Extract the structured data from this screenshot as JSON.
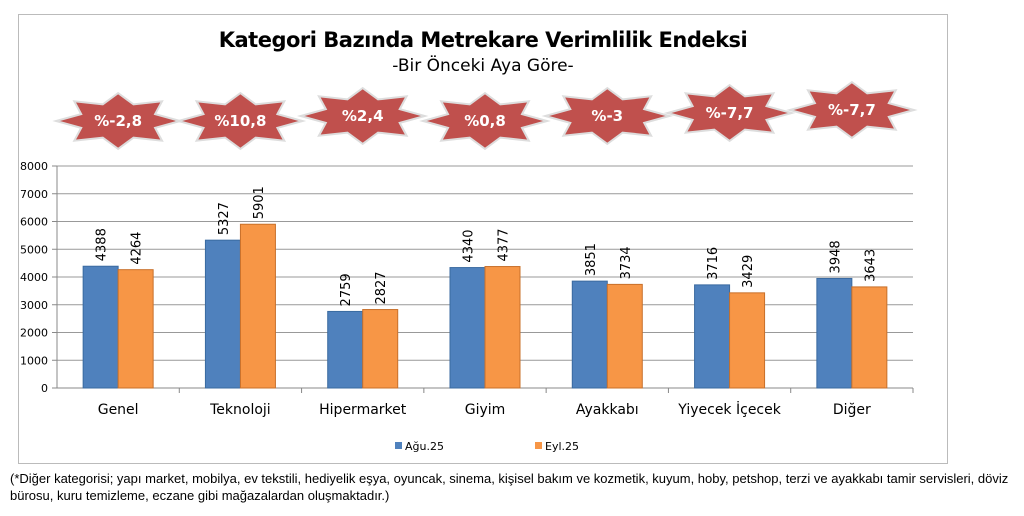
{
  "chart_data": {
    "type": "bar",
    "title": "Kategori Bazında Metrekare Verimlilik Endeksi",
    "subtitle": "-Bir Önceki Aya Göre-",
    "categories": [
      "Genel",
      "Teknoloji",
      "Hipermarket",
      "Giyim",
      "Ayakkabı",
      "Yiyecek İçecek",
      "Diğer"
    ],
    "series": [
      {
        "name": "Ağu.25",
        "color": "#4f81bd",
        "values": [
          4388,
          5327,
          2759,
          4340,
          3851,
          3716,
          3948
        ]
      },
      {
        "name": "Eyl.25",
        "color": "#f79646",
        "values": [
          4264,
          5901,
          2827,
          4377,
          3734,
          3429,
          3643
        ]
      }
    ],
    "changes": [
      "%-2,8",
      "%10,8",
      "%2,4",
      "%0,8",
      "%-3",
      "%-7,7",
      "%-7,7"
    ],
    "badge_color": "#c0504d",
    "ylim": [
      0,
      8000
    ],
    "yticks": [
      0,
      1000,
      2000,
      3000,
      4000,
      5000,
      6000,
      7000,
      8000
    ],
    "grid": true,
    "legend": "bottom"
  },
  "footnote": "(*Diğer kategorisi; yapı market, mobilya, ev tekstili, hediyelik eşya, oyuncak, sinema, kişisel bakım ve kozmetik, kuyum, hoby, petshop, terzi ve ayakkabı tamir servisleri, döviz bürosu, kuru temizleme, eczane gibi mağazalardan oluşmaktadır.)"
}
